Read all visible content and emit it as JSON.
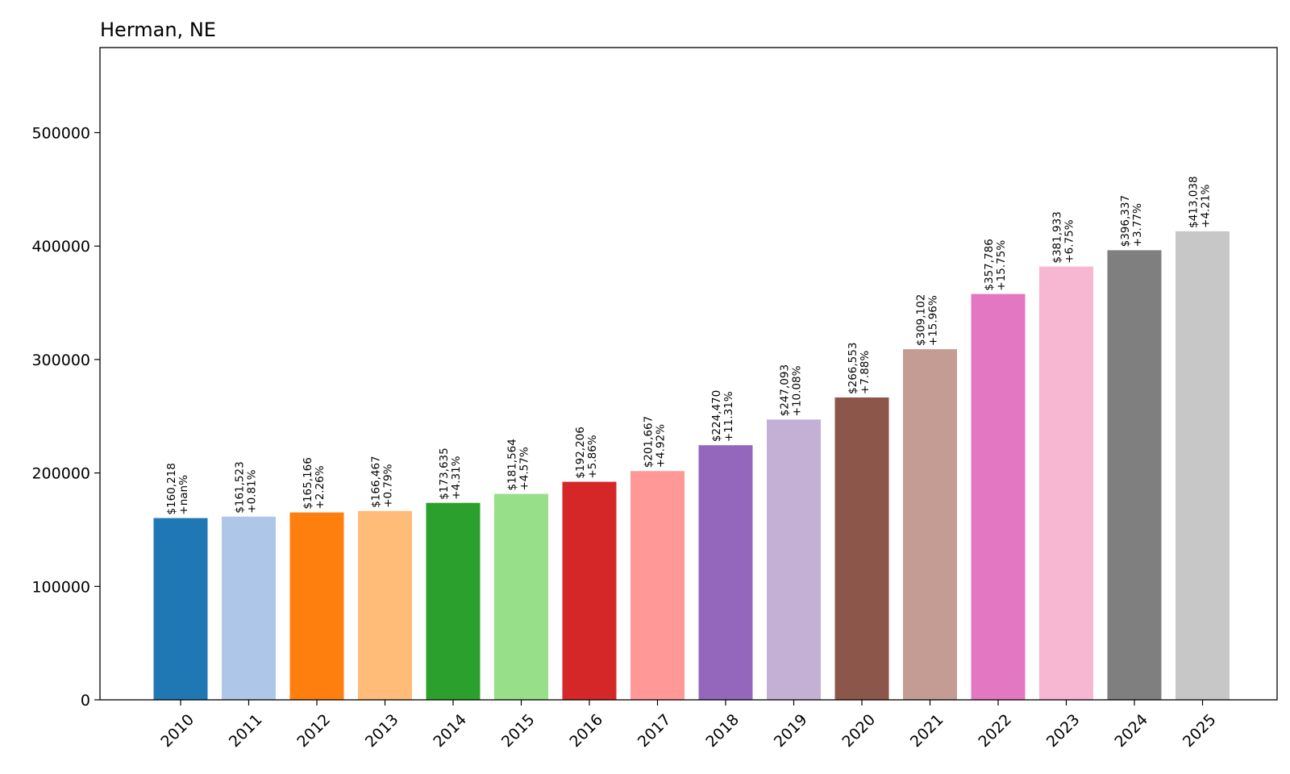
{
  "chart_data": {
    "type": "bar",
    "title": "Herman, NE",
    "xlabel": "",
    "ylabel": "",
    "categories": [
      "2010",
      "2011",
      "2012",
      "2013",
      "2014",
      "2015",
      "2016",
      "2017",
      "2018",
      "2019",
      "2020",
      "2021",
      "2022",
      "2023",
      "2024",
      "2025"
    ],
    "values": [
      160218,
      161523,
      165166,
      166467,
      173635,
      181564,
      192206,
      201667,
      224470,
      247093,
      266553,
      309102,
      357786,
      381933,
      396337,
      413038
    ],
    "value_labels": [
      "$160,218",
      "$161,523",
      "$165,166",
      "$166,467",
      "$173,635",
      "$181,564",
      "$192,206",
      "$201,667",
      "$224,470",
      "$247,093",
      "$266,553",
      "$309,102",
      "$357,786",
      "$381,933",
      "$396,337",
      "$413,038"
    ],
    "change_labels": [
      "+nan%",
      "+0.81%",
      "+2.26%",
      "+0.79%",
      "+4.31%",
      "+4.57%",
      "+5.86%",
      "+4.92%",
      "+11.31%",
      "+10.08%",
      "+7.88%",
      "+15.96%",
      "+15.75%",
      "+6.75%",
      "+3.77%",
      "+4.21%"
    ],
    "colors": [
      "#1f77b4",
      "#aec7e8",
      "#ff7f0e",
      "#ffbb78",
      "#2ca02c",
      "#98df8a",
      "#d62728",
      "#ff9896",
      "#9467bd",
      "#c5b0d5",
      "#8c564b",
      "#c49c94",
      "#e377c2",
      "#f7b6d2",
      "#7f7f7f",
      "#c7c7c7"
    ],
    "ylim": [
      0,
      575000
    ],
    "yticks": [
      "0",
      "100000",
      "200000",
      "300000",
      "400000",
      "500000"
    ],
    "grid": false,
    "legend": "none"
  }
}
